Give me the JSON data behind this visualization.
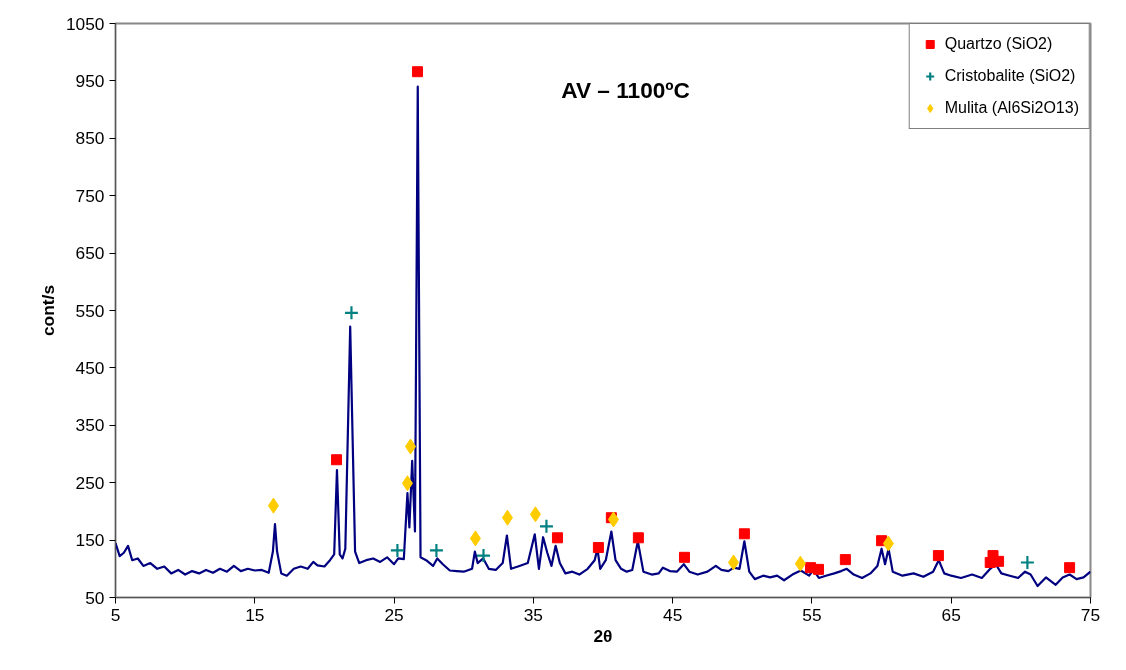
{
  "chart_data": {
    "type": "line",
    "title": "AV – 1100ºC",
    "xlabel": "2θ",
    "ylabel": "cont/s",
    "xlim": [
      5,
      75
    ],
    "xticks": [
      5,
      15,
      25,
      35,
      45,
      55,
      65,
      75
    ],
    "ylim": [
      50,
      1050
    ],
    "yticks": [
      50,
      150,
      250,
      350,
      450,
      550,
      650,
      750,
      850,
      950,
      1050
    ],
    "grid": false,
    "legend": "top right",
    "series": [
      {
        "color": "#000080",
        "x": [
          5.0,
          5.3,
          5.6,
          5.9,
          6.2,
          6.6,
          7.0,
          7.5,
          8.0,
          8.5,
          9.0,
          9.5,
          10.0,
          10.5,
          11.0,
          11.5,
          12.0,
          12.5,
          13.0,
          13.5,
          14.0,
          14.5,
          15.0,
          15.5,
          16.0,
          16.3,
          16.45,
          16.6,
          16.9,
          17.3,
          17.8,
          18.3,
          18.8,
          19.2,
          19.5,
          20.0,
          20.4,
          20.7,
          20.9,
          21.1,
          21.3,
          21.5,
          21.85,
          22.2,
          22.5,
          23.0,
          23.5,
          24.0,
          24.5,
          25.0,
          25.3,
          25.7,
          25.96,
          26.1,
          26.3,
          26.5,
          26.7,
          26.9,
          27.3,
          27.8,
          28.1,
          28.5,
          29.0,
          29.5,
          30.0,
          30.6,
          30.8,
          31.0,
          31.4,
          31.8,
          32.3,
          32.8,
          33.1,
          33.4,
          34.0,
          34.6,
          35.1,
          35.4,
          35.7,
          36.0,
          36.3,
          36.6,
          36.9,
          37.3,
          37.8,
          38.3,
          38.9,
          39.4,
          39.6,
          39.8,
          40.2,
          40.6,
          40.9,
          41.3,
          41.7,
          42.1,
          42.5,
          42.9,
          43.5,
          44.0,
          44.3,
          44.8,
          45.3,
          45.8,
          46.2,
          46.8,
          47.5,
          48.1,
          48.5,
          49.0,
          49.4,
          49.8,
          50.15,
          50.5,
          50.9,
          51.5,
          52.0,
          52.5,
          53.0,
          53.6,
          54.2,
          54.8,
          55.1,
          55.5,
          56.0,
          56.6,
          57.1,
          57.5,
          58.0,
          58.6,
          59.2,
          59.7,
          60.0,
          60.25,
          60.5,
          60.8,
          61.5,
          62.3,
          63.0,
          63.7,
          64.1,
          64.5,
          65.0,
          65.7,
          66.5,
          67.2,
          67.8,
          68.2,
          68.6,
          69.2,
          69.8,
          70.3,
          70.7,
          71.2,
          71.8,
          72.5,
          73.0,
          73.5,
          74.0,
          74.5,
          75.0
        ],
        "values": [
          145,
          122,
          128,
          140,
          115,
          118,
          105,
          110,
          100,
          104,
          92,
          98,
          90,
          96,
          92,
          98,
          93,
          100,
          95,
          105,
          96,
          100,
          97,
          98,
          93,
          130,
          178,
          130,
          92,
          88,
          100,
          104,
          100,
          112,
          106,
          104,
          115,
          125,
          272,
          125,
          118,
          135,
          522,
          130,
          110,
          115,
          118,
          112,
          120,
          108,
          118,
          117,
          232,
          172,
          288,
          165,
          940,
          120,
          115,
          105,
          118,
          108,
          97,
          96,
          95,
          100,
          130,
          110,
          118,
          100,
          98,
          110,
          158,
          100,
          105,
          110,
          160,
          100,
          155,
          128,
          105,
          140,
          110,
          92,
          95,
          90,
          100,
          115,
          135,
          100,
          115,
          165,
          115,
          100,
          95,
          98,
          148,
          95,
          90,
          92,
          102,
          96,
          95,
          108,
          95,
          90,
          95,
          105,
          98,
          96,
          102,
          100,
          148,
          95,
          82,
          88,
          85,
          88,
          80,
          90,
          97,
          88,
          98,
          84,
          88,
          92,
          96,
          100,
          90,
          84,
          92,
          105,
          135,
          108,
          135,
          95,
          88,
          92,
          86,
          95,
          115,
          92,
          88,
          84,
          90,
          84,
          100,
          108,
          92,
          88,
          84,
          95,
          90,
          70,
          85,
          72,
          85,
          90,
          82,
          85,
          95
        ]
      },
      {
        "type": "scatter",
        "name": "Quartzo (SiO2)",
        "color": "#ff0000",
        "marker": "square",
        "x": [
          20.87,
          26.68,
          36.73,
          39.67,
          40.6,
          42.54,
          45.85,
          50.15,
          54.9,
          55.47,
          57.4,
          60.0,
          64.08,
          67.8,
          68.0,
          68.4,
          73.5
        ],
        "values": [
          290,
          966,
          154,
          137,
          189,
          154,
          120,
          161,
          102,
          99,
          116,
          149,
          123,
          111,
          123,
          113,
          102
        ]
      },
      {
        "type": "scatter",
        "name": "Cristobalite (SiO2)",
        "color": "#008080",
        "marker": "cross",
        "x": [
          21.94,
          25.24,
          28.04,
          31.42,
          35.94,
          70.47
        ],
        "values": [
          546,
          132,
          132,
          123,
          174,
          111
        ]
      },
      {
        "type": "scatter",
        "name": "Mulita (Al6Si2O13)",
        "color": "#ffcc00",
        "marker": "diamond",
        "x": [
          16.34,
          25.96,
          26.18,
          30.84,
          33.14,
          35.15,
          40.75,
          49.37,
          54.17,
          60.49
        ],
        "values": [
          210,
          249,
          313,
          153,
          189,
          195,
          186,
          111,
          109,
          144
        ]
      }
    ]
  }
}
